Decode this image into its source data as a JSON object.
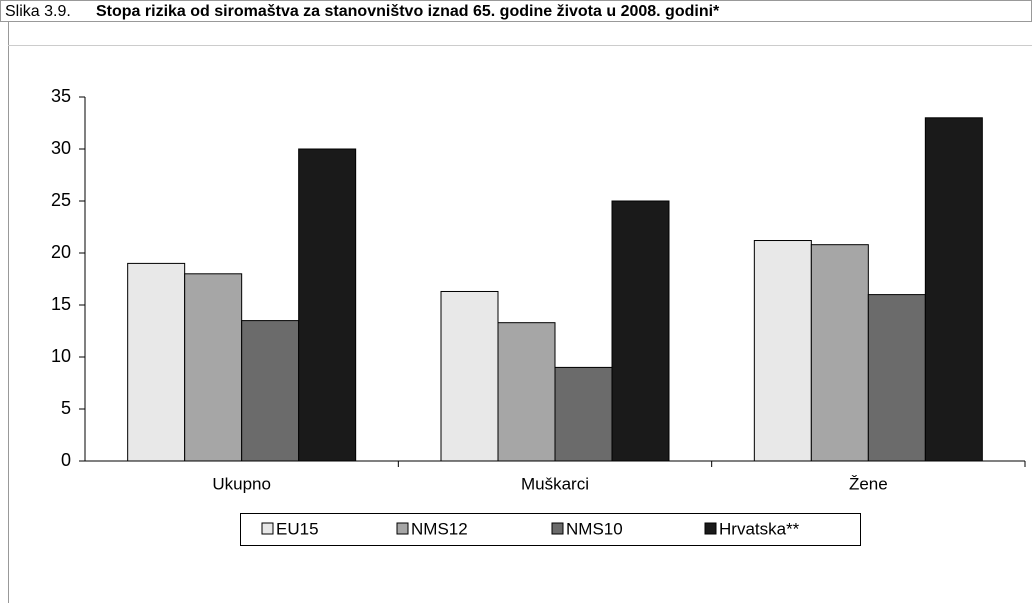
{
  "chart_data": {
    "type": "bar",
    "figure_label": "Slika 3.9.",
    "title": "Stopa rizika od siromaštva za stanovništvo iznad 65. godine života u 2008. godini*",
    "categories": [
      "Ukupno",
      "Muškarci",
      "Žene"
    ],
    "series": [
      {
        "name": "EU15",
        "color": "#e8e8e8",
        "values": [
          19,
          16.3,
          21.2
        ]
      },
      {
        "name": "NMS12",
        "color": "#a6a6a6",
        "values": [
          18,
          13.3,
          20.8
        ]
      },
      {
        "name": "NMS10",
        "color": "#6b6b6b",
        "values": [
          13.5,
          9,
          16
        ]
      },
      {
        "name": "Hrvatska**",
        "color": "#1a1a1a",
        "values": [
          30,
          25,
          33
        ]
      }
    ],
    "ylim": [
      0,
      35
    ],
    "yticks": [
      0,
      5,
      10,
      15,
      20,
      25,
      30,
      35
    ],
    "legend": "bottom"
  }
}
